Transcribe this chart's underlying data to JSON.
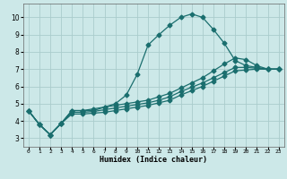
{
  "xlabel": "Humidex (Indice chaleur)",
  "bg_color": "#cce8e8",
  "line_color": "#1a6e6e",
  "grid_color": "#aacccc",
  "xlim": [
    -0.5,
    23.5
  ],
  "ylim": [
    2.5,
    10.8
  ],
  "xticks": [
    0,
    1,
    2,
    3,
    4,
    5,
    6,
    7,
    8,
    9,
    10,
    11,
    12,
    13,
    14,
    15,
    16,
    17,
    18,
    19,
    20,
    21,
    22,
    23
  ],
  "yticks": [
    3,
    4,
    5,
    6,
    7,
    8,
    9,
    10
  ],
  "series": [
    {
      "x": [
        0,
        1,
        2,
        3,
        4,
        5,
        6,
        7,
        8,
        9,
        10,
        11,
        12,
        13,
        14,
        15,
        16,
        17,
        18,
        19,
        20,
        21,
        22,
        23
      ],
      "y": [
        4.6,
        3.8,
        3.2,
        3.85,
        4.6,
        4.6,
        4.6,
        4.8,
        5.0,
        5.5,
        6.7,
        8.4,
        9.0,
        9.55,
        10.0,
        10.2,
        10.0,
        9.3,
        8.5,
        7.5,
        7.2,
        7.1,
        7.0,
        7.0
      ]
    },
    {
      "x": [
        0,
        1,
        2,
        3,
        4,
        5,
        6,
        7,
        8,
        9,
        10,
        11,
        12,
        13,
        14,
        15,
        16,
        17,
        18,
        19,
        20,
        21,
        22,
        23
      ],
      "y": [
        4.6,
        3.8,
        3.2,
        3.85,
        4.6,
        4.6,
        4.7,
        4.8,
        4.9,
        5.0,
        5.1,
        5.2,
        5.4,
        5.6,
        5.9,
        6.2,
        6.5,
        6.9,
        7.3,
        7.65,
        7.55,
        7.2,
        7.0,
        7.0
      ]
    },
    {
      "x": [
        0,
        1,
        2,
        3,
        4,
        5,
        6,
        7,
        8,
        9,
        10,
        11,
        12,
        13,
        14,
        15,
        16,
        17,
        18,
        19,
        20,
        21,
        22,
        23
      ],
      "y": [
        4.6,
        3.8,
        3.2,
        3.85,
        4.5,
        4.5,
        4.55,
        4.65,
        4.75,
        4.85,
        4.95,
        5.05,
        5.2,
        5.4,
        5.7,
        5.95,
        6.2,
        6.5,
        6.8,
        7.1,
        7.1,
        7.05,
        7.0,
        7.0
      ]
    },
    {
      "x": [
        0,
        1,
        2,
        3,
        4,
        5,
        6,
        7,
        8,
        9,
        10,
        11,
        12,
        13,
        14,
        15,
        16,
        17,
        18,
        19,
        20,
        21,
        22,
        23
      ],
      "y": [
        4.6,
        3.8,
        3.2,
        3.85,
        4.4,
        4.4,
        4.45,
        4.5,
        4.6,
        4.7,
        4.8,
        4.9,
        5.05,
        5.2,
        5.5,
        5.75,
        6.0,
        6.3,
        6.6,
        6.9,
        6.95,
        7.0,
        7.0,
        7.0
      ]
    }
  ],
  "marker": "D",
  "markersize": 2.5,
  "linewidth": 0.9
}
